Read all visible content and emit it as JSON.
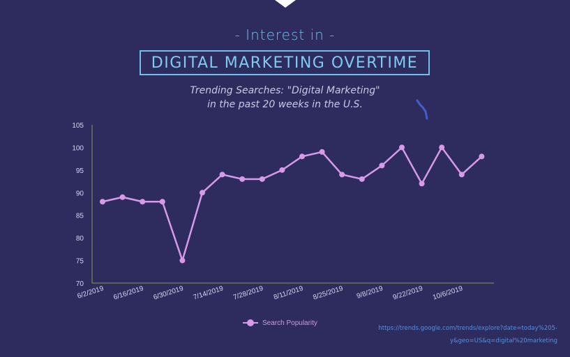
{
  "header": {
    "kicker": "- Interest in -",
    "title": "DIGITAL MARKETING OVERTIME",
    "subtitle_line1": "Trending Searches: \"Digital Marketing\"",
    "subtitle_line2": "in the past 20 weeks in the U.S."
  },
  "chart_data": {
    "type": "line",
    "title": "DIGITAL MARKETING OVERTIME",
    "xlabel": "",
    "ylabel": "",
    "ylim": [
      70,
      105
    ],
    "yticks": [
      70,
      75,
      80,
      85,
      90,
      95,
      100,
      105
    ],
    "x_tick_labels": [
      "6/2/2019",
      "6/16/2019",
      "6/30/2019",
      "7/14/2019",
      "7/28/2019",
      "8/11/2019",
      "8/25/2019",
      "9/8/2019",
      "9/22/2019",
      "10/6/2019"
    ],
    "series": [
      {
        "name": "Search Popularity",
        "color": "#d79ae8",
        "values": [
          88,
          89,
          88,
          88,
          75,
          90,
          94,
          93,
          93,
          95,
          98,
          99,
          94,
          93,
          96,
          100,
          92,
          100,
          94,
          98
        ]
      }
    ],
    "legend": "bottom-center",
    "grid": false
  },
  "legend": {
    "label": "Search Popularity"
  },
  "source": {
    "text": "https://trends.google.com/trends/explore?date=today%205-y&geo=US&q=digital%20marketing"
  },
  "colors": {
    "background": "#2e2c5f",
    "accent": "#6fc0ea",
    "line": "#d79ae8",
    "axis": "#8f9a4a"
  }
}
